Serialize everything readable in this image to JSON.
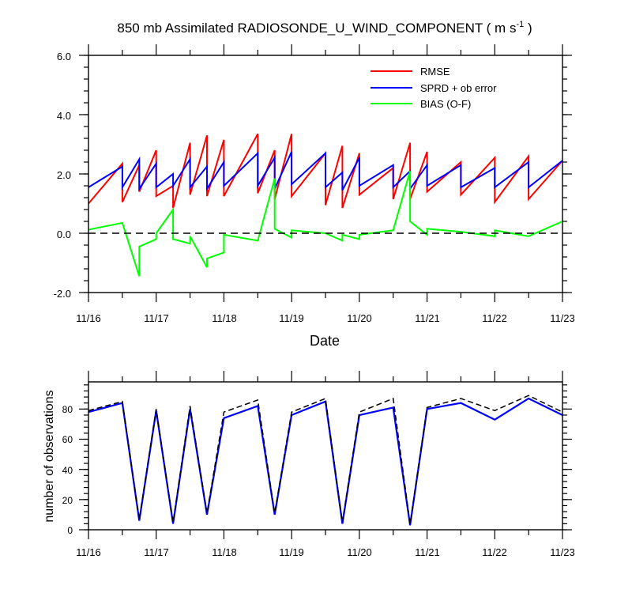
{
  "top_chart": {
    "title": "850 mb Assimilated RADIOSONDE_U_WIND_COMPONENT ( m s",
    "title_sup": "-1",
    "title_end": " )",
    "xlabel": "Date",
    "y_tick_labels": [
      "6.0",
      "4.0",
      "2.0",
      "0.0",
      "-2.0"
    ],
    "x_tick_labels": [
      "11/16",
      "11/17",
      "11/18",
      "11/19",
      "11/20",
      "11/21",
      "11/22",
      "11/23"
    ],
    "legend": [
      "RMSE",
      "SPRD + ob error",
      "BIAS (O-F)"
    ]
  },
  "bottom_chart": {
    "ylabel": "number of observations",
    "y_tick_labels": [
      "0",
      "20",
      "40",
      "60",
      "80"
    ],
    "x_tick_labels": [
      "11/16",
      "11/17",
      "11/18",
      "11/19",
      "11/20",
      "11/21",
      "11/22",
      "11/23"
    ]
  },
  "chart_data": [
    {
      "type": "line",
      "title": "850 mb Assimilated RADIOSONDE_U_WIND_COMPONENT ( m s-1 )",
      "xlabel": "Date",
      "ylabel": "",
      "xlim": [
        "2023-11-16T00:00",
        "2023-11-23T00:00"
      ],
      "ylim": [
        -2.0,
        6.0
      ],
      "zero_line": "dashed",
      "legend_position": "top-right",
      "colors": {
        "RMSE": "#ff0000",
        "SPRD + ob error": "#0000ff",
        "BIAS (O-F)": "#00ff00"
      },
      "series": [
        {
          "name": "RMSE",
          "x": [
            "2023-11-16T00:00",
            "2023-11-16T12:00",
            "2023-11-16T12:00",
            "2023-11-16T18:00",
            "2023-11-16T18:00",
            "2023-11-17T00:00",
            "2023-11-17T00:00",
            "2023-11-17T06:00",
            "2023-11-17T06:00",
            "2023-11-17T12:00",
            "2023-11-17T12:00",
            "2023-11-17T18:00",
            "2023-11-17T18:00",
            "2023-11-18T00:00",
            "2023-11-18T00:00",
            "2023-11-18T12:00",
            "2023-11-18T12:00",
            "2023-11-18T18:00",
            "2023-11-18T18:00",
            "2023-11-19T00:00",
            "2023-11-19T00:00",
            "2023-11-19T12:00",
            "2023-11-19T12:00",
            "2023-11-19T18:00",
            "2023-11-19T18:00",
            "2023-11-20T00:00",
            "2023-11-20T00:00",
            "2023-11-20T12:00",
            "2023-11-20T12:00",
            "2023-11-20T18:00",
            "2023-11-20T18:00",
            "2023-11-21T00:00",
            "2023-11-21T00:00",
            "2023-11-21T12:00",
            "2023-11-21T12:00",
            "2023-11-22T00:00",
            "2023-11-22T00:00",
            "2023-11-22T12:00",
            "2023-11-22T12:00",
            "2023-11-23T00:00"
          ],
          "values": [
            1.0,
            2.35,
            1.05,
            2.3,
            1.4,
            2.8,
            1.25,
            1.6,
            0.85,
            3.05,
            1.3,
            3.3,
            1.25,
            3.15,
            1.25,
            3.35,
            1.35,
            2.8,
            1.15,
            3.35,
            1.25,
            2.7,
            0.95,
            2.95,
            0.85,
            2.7,
            1.3,
            2.2,
            1.15,
            3.05,
            1.15,
            2.75,
            1.4,
            2.4,
            1.3,
            2.55,
            1.05,
            2.6,
            1.15,
            2.45
          ]
        },
        {
          "name": "SPRD + ob error",
          "x": [
            "2023-11-16T00:00",
            "2023-11-16T12:00",
            "2023-11-16T12:00",
            "2023-11-16T18:00",
            "2023-11-16T18:00",
            "2023-11-17T00:00",
            "2023-11-17T00:00",
            "2023-11-17T06:00",
            "2023-11-17T06:00",
            "2023-11-17T12:00",
            "2023-11-17T12:00",
            "2023-11-17T18:00",
            "2023-11-17T18:00",
            "2023-11-18T00:00",
            "2023-11-18T00:00",
            "2023-11-18T12:00",
            "2023-11-18T12:00",
            "2023-11-18T18:00",
            "2023-11-18T18:00",
            "2023-11-19T00:00",
            "2023-11-19T00:00",
            "2023-11-19T12:00",
            "2023-11-19T12:00",
            "2023-11-19T18:00",
            "2023-11-19T18:00",
            "2023-11-20T00:00",
            "2023-11-20T00:00",
            "2023-11-20T12:00",
            "2023-11-20T12:00",
            "2023-11-20T18:00",
            "2023-11-20T18:00",
            "2023-11-21T00:00",
            "2023-11-21T00:00",
            "2023-11-21T12:00",
            "2023-11-21T12:00",
            "2023-11-22T00:00",
            "2023-11-22T00:00",
            "2023-11-22T12:00",
            "2023-11-22T12:00",
            "2023-11-23T00:00"
          ],
          "values": [
            1.55,
            2.25,
            1.55,
            2.5,
            1.5,
            2.35,
            1.55,
            2.0,
            1.6,
            2.5,
            1.55,
            2.25,
            1.5,
            2.4,
            1.6,
            2.7,
            1.6,
            2.55,
            1.5,
            2.75,
            1.65,
            2.7,
            1.55,
            2.05,
            1.45,
            2.55,
            1.6,
            2.3,
            1.55,
            2.1,
            1.5,
            2.3,
            1.6,
            2.3,
            1.55,
            2.2,
            1.55,
            2.4,
            1.55,
            2.45
          ]
        },
        {
          "name": "BIAS (O-F)",
          "x": [
            "2023-11-16T00:00",
            "2023-11-16T12:00",
            "2023-11-16T18:00",
            "2023-11-16T18:00",
            "2023-11-17T00:00",
            "2023-11-17T00:00",
            "2023-11-17T06:00",
            "2023-11-17T06:00",
            "2023-11-17T12:00",
            "2023-11-17T12:00",
            "2023-11-17T18:00",
            "2023-11-17T18:00",
            "2023-11-18T00:00",
            "2023-11-18T00:00",
            "2023-11-18T12:00",
            "2023-11-18T18:00",
            "2023-11-18T18:00",
            "2023-11-19T00:00",
            "2023-11-19T00:00",
            "2023-11-19T12:00",
            "2023-11-19T18:00",
            "2023-11-19T18:00",
            "2023-11-20T00:00",
            "2023-11-20T00:00",
            "2023-11-20T12:00",
            "2023-11-20T18:00",
            "2023-11-20T18:00",
            "2023-11-21T00:00",
            "2023-11-21T00:00",
            "2023-11-21T12:00",
            "2023-11-22T00:00",
            "2023-11-22T00:00",
            "2023-11-22T12:00",
            "2023-11-23T00:00"
          ],
          "values": [
            0.12,
            0.35,
            -1.45,
            -0.45,
            -0.2,
            0.0,
            0.8,
            -0.2,
            -0.35,
            -0.1,
            -1.15,
            -0.85,
            -0.65,
            -0.05,
            -0.25,
            1.85,
            0.15,
            -0.15,
            0.1,
            0.0,
            -0.25,
            -0.05,
            -0.2,
            -0.05,
            0.1,
            2.1,
            0.4,
            -0.05,
            0.15,
            0.05,
            -0.1,
            0.1,
            -0.1,
            0.4
          ]
        }
      ]
    },
    {
      "type": "line",
      "title": "",
      "xlabel": "",
      "ylabel": "number of observations",
      "xlim": [
        "2023-11-16T00:00",
        "2023-11-23T00:00"
      ],
      "ylim": [
        0,
        98
      ],
      "series": [
        {
          "style": "solid",
          "color": "#0000ff",
          "x": [
            "2023-11-16T00:00",
            "2023-11-16T12:00",
            "2023-11-16T18:00",
            "2023-11-17T00:00",
            "2023-11-17T06:00",
            "2023-11-17T12:00",
            "2023-11-17T18:00",
            "2023-11-18T00:00",
            "2023-11-18T12:00",
            "2023-11-18T18:00",
            "2023-11-19T00:00",
            "2023-11-19T12:00",
            "2023-11-19T18:00",
            "2023-11-20T00:00",
            "2023-11-20T12:00",
            "2023-11-20T18:00",
            "2023-11-21T00:00",
            "2023-11-21T12:00",
            "2023-11-22T00:00",
            "2023-11-22T12:00",
            "2023-11-23T00:00"
          ],
          "values": [
            78,
            84,
            6,
            79,
            4,
            80,
            10,
            74,
            82,
            10,
            76,
            85,
            4,
            76,
            81,
            3,
            80,
            84,
            73,
            87,
            76
          ]
        },
        {
          "style": "dashed",
          "color": "#000000",
          "x": [
            "2023-11-16T00:00",
            "2023-11-16T12:00",
            "2023-11-16T18:00",
            "2023-11-17T00:00",
            "2023-11-17T06:00",
            "2023-11-17T12:00",
            "2023-11-17T18:00",
            "2023-11-18T00:00",
            "2023-11-18T12:00",
            "2023-11-18T18:00",
            "2023-11-19T00:00",
            "2023-11-19T12:00",
            "2023-11-19T18:00",
            "2023-11-20T00:00",
            "2023-11-20T12:00",
            "2023-11-20T18:00",
            "2023-11-21T00:00",
            "2023-11-21T12:00",
            "2023-11-22T00:00",
            "2023-11-22T12:00",
            "2023-11-23T00:00"
          ],
          "values": [
            79,
            85,
            7,
            80,
            5,
            82,
            11,
            78,
            86,
            11,
            78,
            87,
            5,
            78,
            87,
            4,
            81,
            87,
            79,
            89,
            78
          ]
        }
      ]
    }
  ]
}
